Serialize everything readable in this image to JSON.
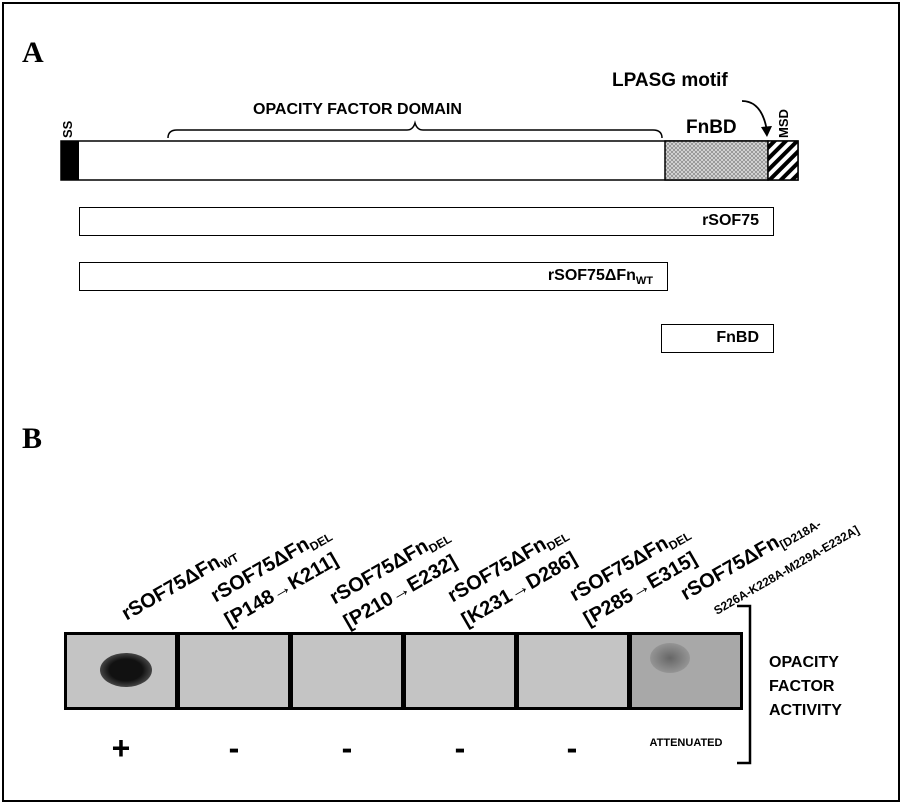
{
  "panel_a": {
    "letter": "A",
    "ss_label": "SS",
    "domain_label": "OPACITY FACTOR DOMAIN",
    "lpasg_label": "LPASG motif",
    "fnbd_label": "FnBD",
    "msd_label": "MSD",
    "constructs": [
      {
        "label": "rSOF75"
      },
      {
        "label": "rSOF75ΔFn",
        "sub": "WT"
      },
      {
        "label": "FnBD"
      }
    ]
  },
  "panel_b": {
    "letter": "B",
    "lanes": [
      {
        "line1": "rSOF75ΔFn",
        "sub1": "WT",
        "line2": "",
        "result": "+"
      },
      {
        "line1": "rSOF75ΔFn",
        "sub1": "DEL",
        "line2": "[P148→K211]",
        "result": "-"
      },
      {
        "line1": "rSOF75ΔFn",
        "sub1": "DEL",
        "line2": "[P210→E232]",
        "result": "-"
      },
      {
        "line1": "rSOF75ΔFn",
        "sub1": "DEL",
        "line2": "[K231→D286]",
        "result": "-"
      },
      {
        "line1": "rSOF75ΔFn",
        "sub1": "DEL",
        "line2": "[P285→E315]",
        "result": "-"
      },
      {
        "line1": "rSOF75ΔFn",
        "sub1": "[D218A-",
        "line2": "S226A-K228A-M229A-E232A]",
        "result": "ATTENUATED"
      }
    ],
    "side_label": [
      "OPACITY",
      "FACTOR",
      "ACTIVITY"
    ]
  }
}
